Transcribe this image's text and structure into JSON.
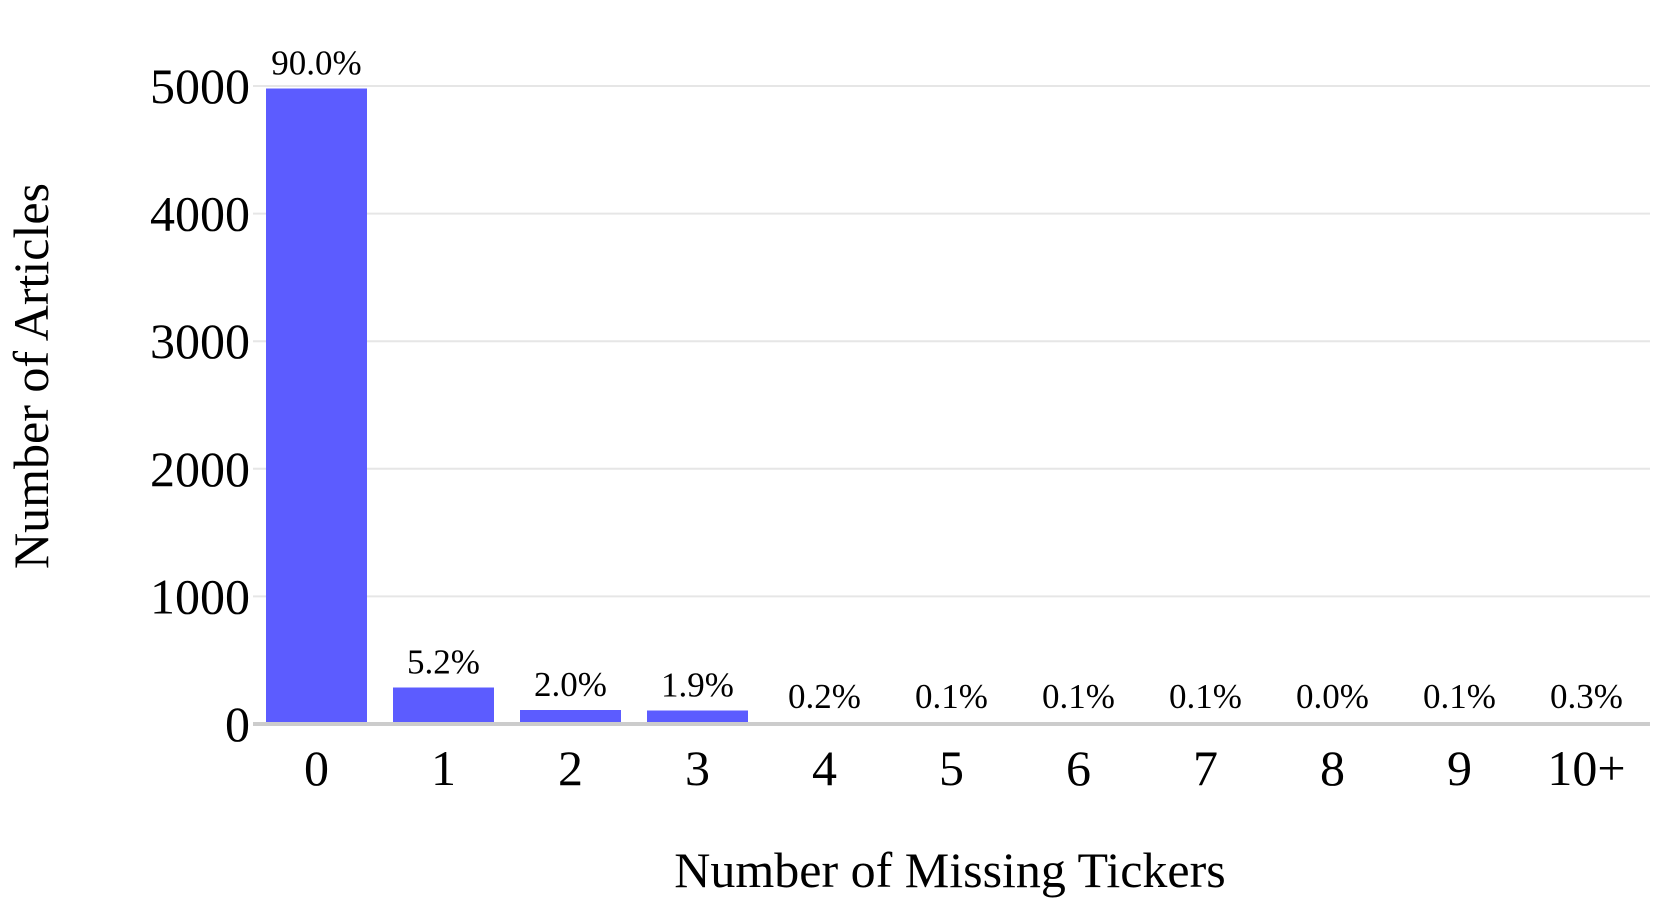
{
  "chart_data": {
    "type": "bar",
    "title": "",
    "xlabel": "Number of Missing Tickers",
    "ylabel": "Number of Articles",
    "categories": [
      "0",
      "1",
      "2",
      "3",
      "4",
      "5",
      "6",
      "7",
      "8",
      "9",
      "10+"
    ],
    "values": [
      4980,
      287,
      111,
      105,
      11,
      6,
      6,
      6,
      0,
      6,
      17
    ],
    "data_labels": [
      "90.0%",
      "5.2%",
      "2.0%",
      "1.9%",
      "0.2%",
      "0.1%",
      "0.1%",
      "0.1%",
      "0.0%",
      "0.1%",
      "0.3%"
    ],
    "ylim": [
      0,
      5000
    ],
    "yticks": [
      0,
      1000,
      2000,
      3000,
      4000,
      5000
    ],
    "ytick_labels": [
      "0",
      "1000",
      "2000",
      "3000",
      "4000",
      "5000"
    ],
    "grid": true,
    "legend": "none",
    "colors": {
      "bar": "#5c5cff",
      "grid": "#e6e6e6",
      "baseline": "#cccccc"
    }
  }
}
